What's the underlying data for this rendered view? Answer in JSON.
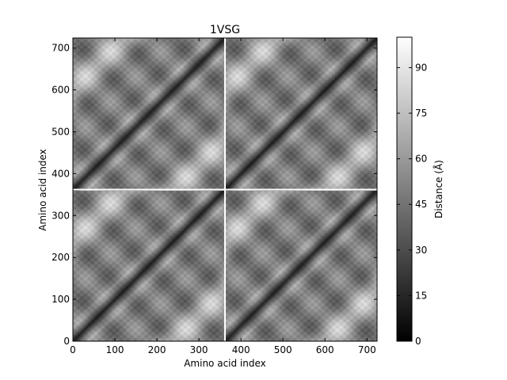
{
  "chart_data": {
    "type": "heatmap",
    "title": "1VSG",
    "xlabel": "Amino acid index",
    "ylabel": "Amino acid index",
    "xlim": [
      0,
      724
    ],
    "ylim": [
      0,
      724
    ],
    "x_ticks": [
      "0",
      "100",
      "200",
      "300",
      "400",
      "500",
      "600",
      "700"
    ],
    "x_tick_values": [
      0,
      100,
      200,
      300,
      400,
      500,
      600,
      700
    ],
    "y_ticks": [
      "0",
      "100",
      "200",
      "300",
      "400",
      "500",
      "600",
      "700"
    ],
    "y_tick_values": [
      0,
      100,
      200,
      300,
      400,
      500,
      600,
      700
    ],
    "chain_boundary": 362,
    "colormap": "gray",
    "colorbar": {
      "label": "Distance (Å)",
      "min": 0,
      "max": 100,
      "ticks": [
        "0",
        "15",
        "30",
        "45",
        "60",
        "75",
        "90"
      ],
      "tick_values": [
        0,
        15,
        30,
        45,
        60,
        75,
        90
      ]
    },
    "grid": false
  }
}
